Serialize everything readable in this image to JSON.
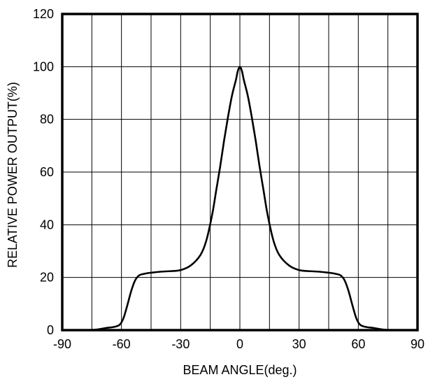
{
  "chart_data": {
    "type": "line",
    "title": "",
    "xlabel": "BEAM ANGLE(deg.)",
    "ylabel": "RELATIVE POWER OUTPUT(%)",
    "xlim": [
      -90,
      90
    ],
    "ylim": [
      0,
      120
    ],
    "xticks": [
      -90,
      -60,
      -30,
      0,
      30,
      60,
      90
    ],
    "yticks": [
      0,
      20,
      40,
      60,
      80,
      100,
      120
    ],
    "x_gridlines": [
      -75,
      -60,
      -45,
      -30,
      -15,
      0,
      15,
      30,
      45,
      60,
      75
    ],
    "grid": true,
    "series_color": "#000000",
    "series": [
      {
        "x": [
          -76,
          -72,
          -68,
          -64,
          -61,
          -59,
          -57,
          -55,
          -53,
          -51,
          -49,
          -47,
          -45,
          -40,
          -35,
          -30,
          -25,
          -20,
          -17,
          -14,
          -12,
          -10,
          -8,
          -6,
          -4,
          -2,
          -1,
          0,
          1,
          2,
          4,
          6,
          8,
          10,
          12,
          14,
          17,
          20,
          25,
          30,
          35,
          40,
          45,
          47,
          49,
          51,
          53,
          55,
          57,
          59,
          61,
          64,
          68,
          72,
          76
        ],
        "y": [
          0,
          0.3,
          0.8,
          1.2,
          2.0,
          4.5,
          9.5,
          15,
          19,
          20.8,
          21.3,
          21.6,
          21.8,
          22.2,
          22.4,
          22.8,
          24.5,
          28.5,
          34,
          44,
          53,
          62,
          72,
          81,
          89,
          95,
          98.5,
          100,
          98.5,
          95,
          89,
          81,
          72,
          62,
          53,
          44,
          34,
          28.5,
          24.5,
          22.8,
          22.4,
          22.2,
          21.8,
          21.6,
          21.3,
          20.8,
          19,
          15,
          9.5,
          4.5,
          2.0,
          1.2,
          0.8,
          0.3,
          0
        ]
      }
    ]
  }
}
